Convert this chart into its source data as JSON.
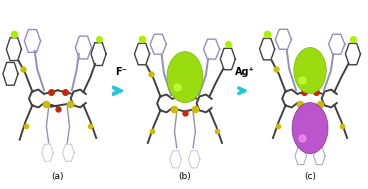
{
  "bg_color": "#ffffff",
  "arrow_color": "#26c6da",
  "arrow_label_color": "#000000",
  "arrow_labels": [
    "F⁻",
    "Ag⁺"
  ],
  "panel_labels": [
    "(a)",
    "(b)",
    "(c)"
  ],
  "panel_label_color": "#000000",
  "panel_label_fontsize": 6.5,
  "arrow_label_fontsize": 7,
  "arrow_label_fontweight": "bold",
  "figsize": [
    3.68,
    1.89
  ],
  "dpi": 100,
  "panel_bg": "#f5f5f5",
  "dark_gray": "#404040",
  "mid_gray": "#808080",
  "light_gray": "#b0b0b0",
  "lavender": "#9090c0",
  "red": "#cc2200",
  "yellow": "#ddcc00",
  "green_sphere": "#99dd11",
  "purple_sphere": "#bb55cc",
  "fluorine_green": "#aaee00",
  "sulfur_yellow": "#ccbb00",
  "oxygen_red": "#cc3300",
  "bond_dark": "#363636",
  "bond_mid": "#606060"
}
